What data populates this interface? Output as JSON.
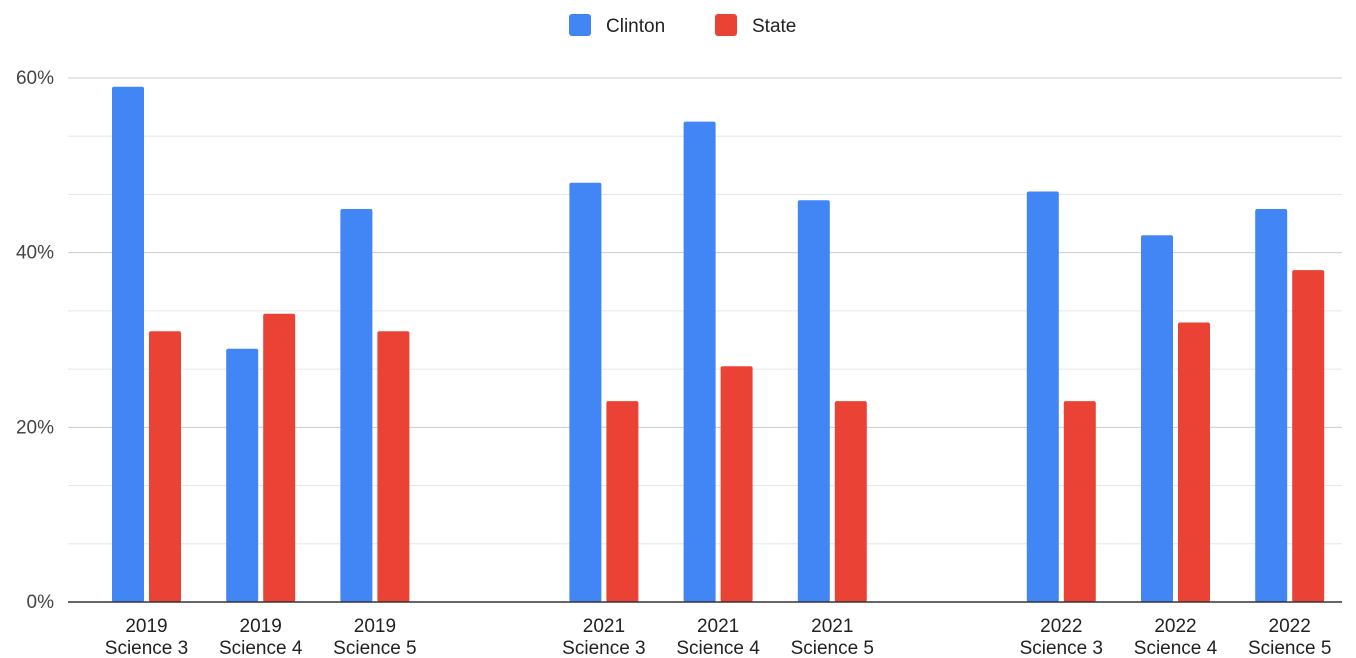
{
  "chart_data": {
    "type": "bar",
    "categories": [
      [
        "2019",
        "Science 3"
      ],
      [
        "2019",
        "Science 4"
      ],
      [
        "2019",
        "Science 5"
      ],
      [
        "2021",
        "Science 3"
      ],
      [
        "2021",
        "Science 4"
      ],
      [
        "2021",
        "Science 5"
      ],
      [
        "2022",
        "Science 3"
      ],
      [
        "2022",
        "Science 4"
      ],
      [
        "2022",
        "Science 5"
      ]
    ],
    "groups": [
      3,
      3,
      3
    ],
    "series": [
      {
        "name": "Clinton",
        "color": "#4285f4",
        "values": [
          59,
          29,
          45,
          48,
          55,
          46,
          47,
          42,
          45
        ]
      },
      {
        "name": "State",
        "color": "#ea4335",
        "values": [
          31,
          33,
          31,
          23,
          27,
          23,
          23,
          32,
          38
        ]
      }
    ],
    "y_ticks": [
      "0%",
      "20%",
      "40%",
      "60%"
    ],
    "ylim": [
      0,
      60
    ],
    "y_major_step": 20,
    "y_minor_step": 6.6667,
    "grid": true,
    "legend_position": "top-center",
    "title": "",
    "xlabel": "",
    "ylabel": ""
  }
}
